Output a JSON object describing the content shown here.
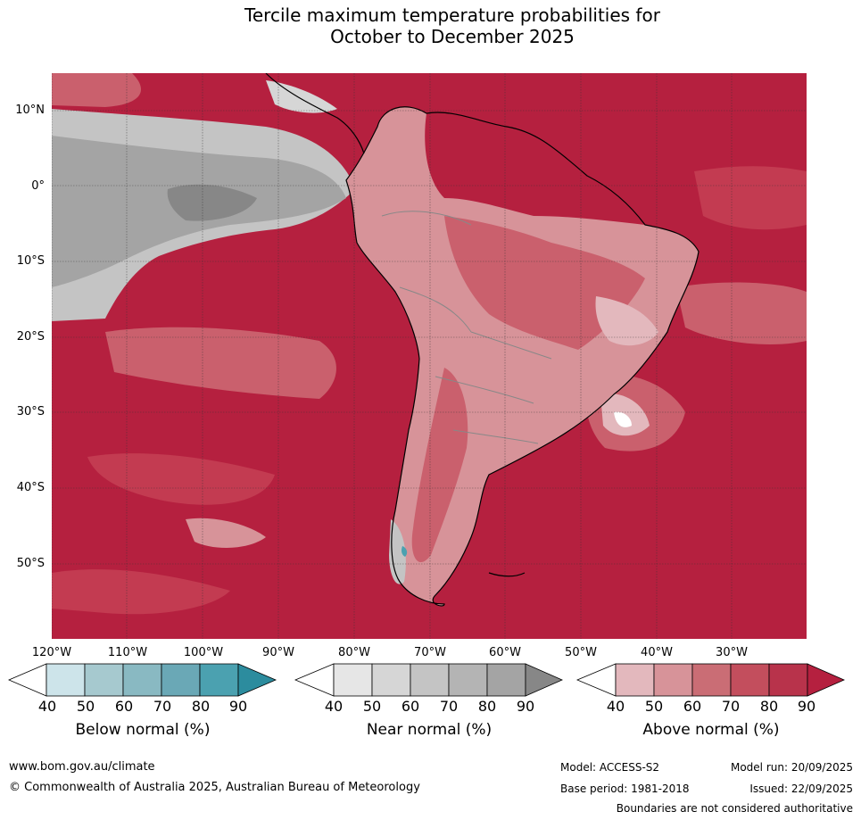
{
  "title": {
    "line1": "Tercile maximum temperature probabilities for",
    "line2": "October to December 2025"
  },
  "map": {
    "latitudes": [
      "10°N",
      "0°",
      "10°S",
      "20°S",
      "30°S",
      "40°S",
      "50°S"
    ],
    "longitudes": [
      "120°W",
      "110°W",
      "100°W",
      "90°W",
      "80°W",
      "70°W",
      "60°W",
      "50°W",
      "40°W",
      "30°W"
    ],
    "colors": {
      "ocean_above_90": "#b5203f",
      "above_80": "#c33b51",
      "above_70": "#ca606d",
      "above_60": "#d79399",
      "above_50": "#e3b8bd",
      "near_90": "#878787",
      "near_80": "#a4a4a4",
      "near_70": "#c4c4c4",
      "near_60": "#d6d6d6",
      "near_50": "#e6e6e6"
    }
  },
  "legend": {
    "below": {
      "label": "Below normal (%)",
      "ticks": [
        "40",
        "50",
        "60",
        "70",
        "80",
        "90"
      ],
      "colors": [
        "#ffffff",
        "#cde4ea",
        "#a6c9cf",
        "#89b9c2",
        "#6aa8b6",
        "#4ba1b0",
        "#2c8c9e"
      ]
    },
    "near": {
      "label": "Near normal (%)",
      "ticks": [
        "40",
        "50",
        "60",
        "70",
        "80",
        "90"
      ],
      "colors": [
        "#ffffff",
        "#e6e6e6",
        "#d6d6d6",
        "#c4c4c4",
        "#b4b4b4",
        "#a4a4a4",
        "#878787"
      ]
    },
    "above": {
      "label": "Above normal (%)",
      "ticks": [
        "40",
        "50",
        "60",
        "70",
        "80",
        "90"
      ],
      "colors": [
        "#ffffff",
        "#e3b8bd",
        "#d79399",
        "#ca6d75",
        "#c34e5d",
        "#b8334b",
        "#b5203f"
      ]
    }
  },
  "footer": {
    "website": "www.bom.gov.au/climate",
    "copyright": "© Commonwealth of Australia 2025, Australian Bureau of Meteorology",
    "model": "Model: ACCESS-S2",
    "base_period": "Base period: 1981-2018",
    "model_run": "Model run: 20/09/2025",
    "issued": "Issued: 22/09/2025",
    "disclaimer": "Boundaries are not considered authoritative"
  }
}
